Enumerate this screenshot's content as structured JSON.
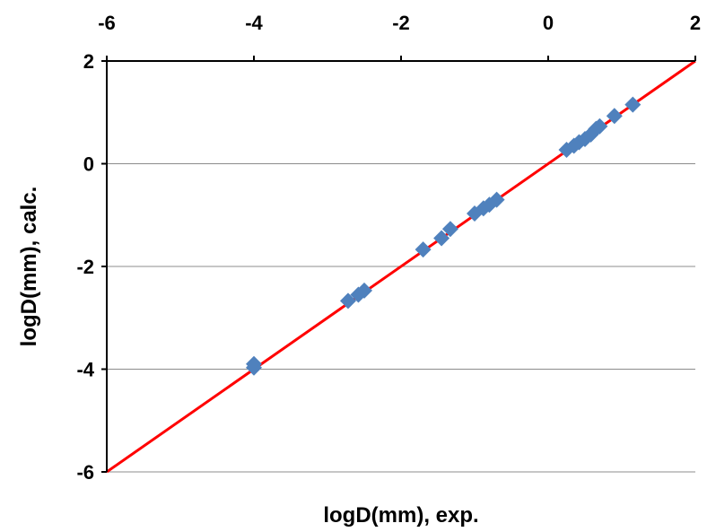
{
  "chart_data": {
    "type": "scatter",
    "xlabel": "logD(mm), exp.",
    "ylabel": "logD(mm), calc.",
    "xlim": [
      -6,
      2
    ],
    "ylim": [
      -6,
      2
    ],
    "x_ticks": [
      "-6",
      "-4",
      "-2",
      "0",
      "2"
    ],
    "y_ticks": [
      "2",
      "0",
      "-2",
      "-4",
      "-6"
    ],
    "x_axis_position": "top",
    "grid": "horizontal",
    "legend": "none",
    "series": [
      {
        "marker": "diamond",
        "color": "#4F81BD",
        "points": [
          {
            "x": -4.0,
            "y": -3.97
          },
          {
            "x": -4.0,
            "y": -3.9
          },
          {
            "x": -2.72,
            "y": -2.67
          },
          {
            "x": -2.58,
            "y": -2.55
          },
          {
            "x": -2.5,
            "y": -2.47
          },
          {
            "x": -1.7,
            "y": -1.67
          },
          {
            "x": -1.45,
            "y": -1.45
          },
          {
            "x": -1.33,
            "y": -1.27
          },
          {
            "x": -1.0,
            "y": -0.97
          },
          {
            "x": -0.88,
            "y": -0.87
          },
          {
            "x": -0.8,
            "y": -0.8
          },
          {
            "x": -0.7,
            "y": -0.7
          },
          {
            "x": 0.25,
            "y": 0.27
          },
          {
            "x": 0.35,
            "y": 0.35
          },
          {
            "x": 0.42,
            "y": 0.42
          },
          {
            "x": 0.5,
            "y": 0.48
          },
          {
            "x": 0.58,
            "y": 0.57
          },
          {
            "x": 0.65,
            "y": 0.68
          },
          {
            "x": 0.7,
            "y": 0.73
          },
          {
            "x": 0.9,
            "y": 0.93
          },
          {
            "x": 1.15,
            "y": 1.15
          }
        ]
      }
    ],
    "reference_line": {
      "from": [
        -6,
        -6
      ],
      "to": [
        2,
        2
      ],
      "color": "#FF0000"
    }
  }
}
